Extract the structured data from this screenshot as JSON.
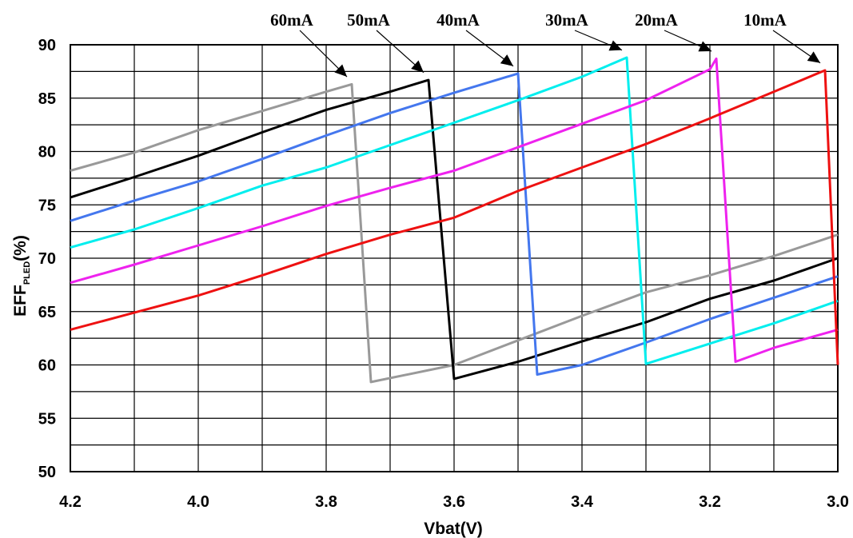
{
  "chart_data": {
    "type": "line",
    "title": "",
    "xlabel": "Vbat(V)",
    "ylabel": {
      "main": "EFF",
      "sub": "PLED",
      "suffix": "(%)"
    },
    "xlim": [
      4.2,
      3.0
    ],
    "ylim": [
      50,
      90
    ],
    "x_reversed": true,
    "x_ticks": [
      "4.2",
      "4.0",
      "3.8",
      "3.6",
      "3.4",
      "3.2",
      "3.0"
    ],
    "y_ticks": [
      "90",
      "85",
      "80",
      "75",
      "70",
      "65",
      "60",
      "55",
      "50"
    ],
    "grid": true,
    "legend": "none",
    "series": [
      {
        "name": "60mA",
        "color": "#999999",
        "label_anchor": [
          3.76,
          86.4
        ],
        "points": [
          [
            4.2,
            78.2
          ],
          [
            4.1,
            79.9
          ],
          [
            4.0,
            82.0
          ],
          [
            3.9,
            83.8
          ],
          [
            3.8,
            85.6
          ],
          [
            3.76,
            86.3
          ],
          [
            3.73,
            58.4
          ],
          [
            3.6,
            60.0
          ],
          [
            3.5,
            62.3
          ],
          [
            3.4,
            64.6
          ],
          [
            3.3,
            66.8
          ],
          [
            3.2,
            68.4
          ],
          [
            3.1,
            70.2
          ],
          [
            3.0,
            72.2
          ]
        ]
      },
      {
        "name": "50mA",
        "color": "#000000",
        "label_anchor": [
          3.64,
          86.8
        ],
        "points": [
          [
            4.2,
            75.7
          ],
          [
            4.1,
            77.6
          ],
          [
            4.0,
            79.6
          ],
          [
            3.9,
            81.8
          ],
          [
            3.8,
            83.9
          ],
          [
            3.7,
            85.6
          ],
          [
            3.64,
            86.7
          ],
          [
            3.6,
            58.7
          ],
          [
            3.5,
            60.3
          ],
          [
            3.4,
            62.2
          ],
          [
            3.3,
            64.0
          ],
          [
            3.2,
            66.2
          ],
          [
            3.1,
            67.9
          ],
          [
            3.0,
            70.0
          ]
        ]
      },
      {
        "name": "40mA",
        "color": "#4477ee",
        "label_anchor": [
          3.5,
          87.4
        ],
        "points": [
          [
            4.2,
            73.5
          ],
          [
            4.1,
            75.4
          ],
          [
            4.0,
            77.2
          ],
          [
            3.9,
            79.3
          ],
          [
            3.8,
            81.5
          ],
          [
            3.7,
            83.6
          ],
          [
            3.6,
            85.5
          ],
          [
            3.5,
            87.3
          ],
          [
            3.47,
            59.1
          ],
          [
            3.4,
            60.0
          ],
          [
            3.3,
            62.1
          ],
          [
            3.2,
            64.3
          ],
          [
            3.1,
            66.3
          ],
          [
            3.0,
            68.3
          ]
        ]
      },
      {
        "name": "30mA",
        "color": "#00eeee",
        "label_anchor": [
          3.33,
          88.9
        ],
        "points": [
          [
            4.2,
            71.0
          ],
          [
            4.1,
            72.7
          ],
          [
            4.0,
            74.7
          ],
          [
            3.9,
            76.8
          ],
          [
            3.8,
            78.5
          ],
          [
            3.7,
            80.6
          ],
          [
            3.6,
            82.7
          ],
          [
            3.5,
            84.8
          ],
          [
            3.4,
            87.0
          ],
          [
            3.33,
            88.8
          ],
          [
            3.3,
            60.1
          ],
          [
            3.2,
            62.0
          ],
          [
            3.1,
            63.9
          ],
          [
            3.0,
            66.0
          ]
        ]
      },
      {
        "name": "20mA",
        "color": "#ee22ee",
        "label_anchor": [
          3.19,
          88.8
        ],
        "points": [
          [
            4.2,
            67.7
          ],
          [
            4.1,
            69.4
          ],
          [
            4.0,
            71.2
          ],
          [
            3.9,
            73.0
          ],
          [
            3.8,
            74.9
          ],
          [
            3.7,
            76.6
          ],
          [
            3.6,
            78.2
          ],
          [
            3.5,
            80.4
          ],
          [
            3.4,
            82.6
          ],
          [
            3.3,
            84.8
          ],
          [
            3.2,
            87.7
          ],
          [
            3.19,
            88.7
          ],
          [
            3.16,
            60.3
          ],
          [
            3.1,
            61.6
          ],
          [
            3.0,
            63.3
          ]
        ]
      },
      {
        "name": "10mA",
        "color": "#ee1111",
        "label_anchor": [
          3.02,
          87.7
        ],
        "points": [
          [
            4.2,
            63.3
          ],
          [
            4.1,
            64.9
          ],
          [
            4.0,
            66.5
          ],
          [
            3.9,
            68.4
          ],
          [
            3.8,
            70.4
          ],
          [
            3.7,
            72.2
          ],
          [
            3.6,
            73.8
          ],
          [
            3.5,
            76.3
          ],
          [
            3.4,
            78.5
          ],
          [
            3.3,
            80.7
          ],
          [
            3.2,
            83.1
          ],
          [
            3.1,
            85.6
          ],
          [
            3.02,
            87.6
          ],
          [
            3.0,
            60.0
          ]
        ]
      }
    ]
  }
}
